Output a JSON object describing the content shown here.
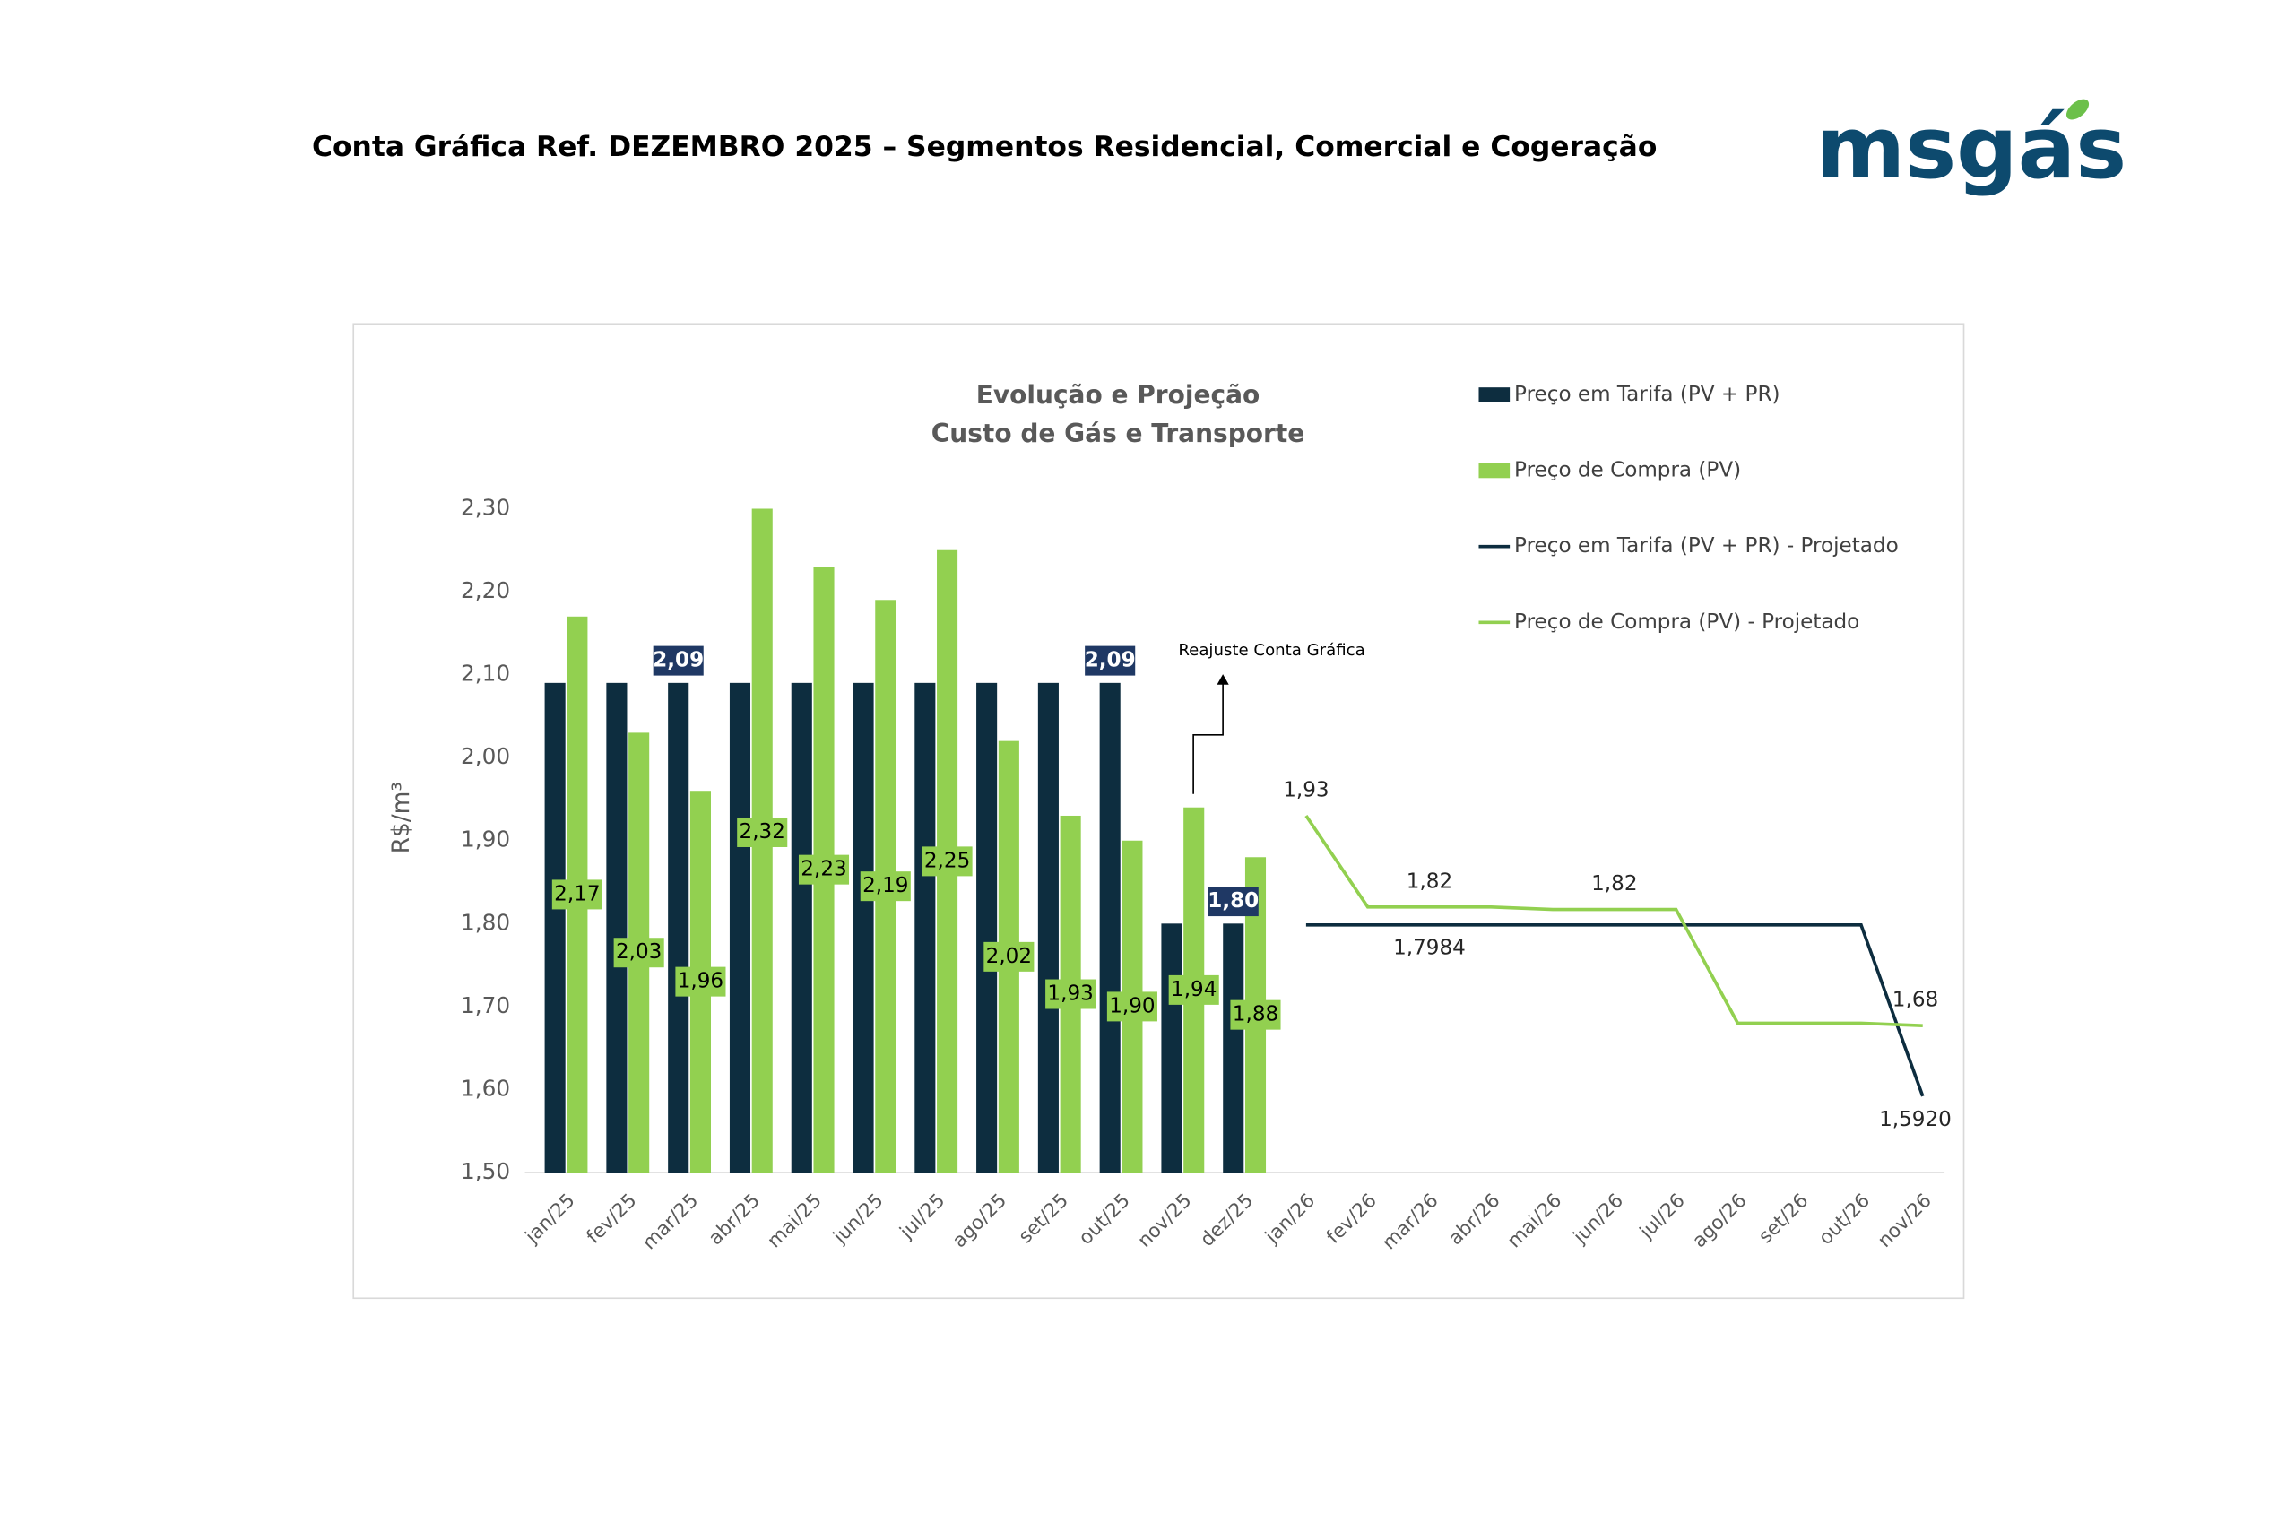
{
  "header": {
    "title": "Conta Gráfica Ref. DEZEMBRO 2025 – Segmentos Residencial, Comercial e Cogeração",
    "logo": "msgás"
  },
  "chart_data": {
    "type": "bar",
    "title": "Evolução e Projeção",
    "subtitle": "Custo de Gás e Transporte",
    "y_label": "R$/m³",
    "annotation": "Reajuste Conta Gráfica",
    "categories": [
      "jan/25",
      "fev/25",
      "mar/25",
      "abr/25",
      "mai/25",
      "jun/25",
      "jul/25",
      "ago/25",
      "set/25",
      "out/25",
      "nov/25",
      "dez/25",
      "jan/26",
      "fev/26",
      "mar/26",
      "abr/26",
      "mai/26",
      "jun/26",
      "jul/26",
      "ago/26",
      "set/26",
      "out/26",
      "nov/26"
    ],
    "ylim": [
      1.5,
      2.3
    ],
    "yticks": [
      {
        "value": 1.5,
        "label": "1,50"
      },
      {
        "value": 1.6,
        "label": "1,60"
      },
      {
        "value": 1.7,
        "label": "1,70"
      },
      {
        "value": 1.8,
        "label": "1,80"
      },
      {
        "value": 1.9,
        "label": "1,90"
      },
      {
        "value": 2.0,
        "label": "2,00"
      },
      {
        "value": 2.1,
        "label": "2,10"
      },
      {
        "value": 2.2,
        "label": "2,20"
      },
      {
        "value": 2.3,
        "label": "2,30"
      }
    ],
    "legend": "right",
    "series": [
      {
        "name": "Preço em Tarifa (PV + PR)",
        "type": "bar",
        "color": "#0d2d3f",
        "values": [
          2.09,
          2.09,
          2.09,
          2.09,
          2.09,
          2.09,
          2.09,
          2.09,
          2.09,
          2.09,
          1.8,
          1.8,
          null,
          null,
          null,
          null,
          null,
          null,
          null,
          null,
          null,
          null,
          null
        ],
        "value_labels": [
          null,
          null,
          "2,09",
          null,
          null,
          null,
          null,
          null,
          null,
          "2,09",
          null,
          "1,80",
          null,
          null,
          null,
          null,
          null,
          null,
          null,
          null,
          null,
          null,
          null
        ]
      },
      {
        "name": "Preço de Compra (PV)",
        "type": "bar",
        "color": "#92d050",
        "values": [
          2.17,
          2.03,
          1.96,
          2.32,
          2.23,
          2.19,
          2.25,
          2.02,
          1.93,
          1.9,
          1.94,
          1.88,
          null,
          null,
          null,
          null,
          null,
          null,
          null,
          null,
          null,
          null,
          null
        ],
        "value_labels": [
          "2,17",
          "2,03",
          "1,96",
          "2,32",
          "2,23",
          "2,19",
          "2,25",
          "2,02",
          "1,93",
          "1,90",
          "1,94",
          "1,88",
          null,
          null,
          null,
          null,
          null,
          null,
          null,
          null,
          null,
          null,
          null
        ]
      },
      {
        "name": "Preço em Tarifa (PV + PR) - Projetado",
        "type": "line",
        "color": "#0d2d3f",
        "values": [
          null,
          null,
          null,
          null,
          null,
          null,
          null,
          null,
          null,
          null,
          null,
          null,
          1.7984,
          1.7984,
          1.7984,
          1.7984,
          1.7984,
          1.7984,
          1.7984,
          1.7984,
          1.7984,
          1.7984,
          1.592
        ],
        "value_labels": [
          null,
          null,
          null,
          null,
          null,
          null,
          null,
          null,
          null,
          null,
          null,
          null,
          null,
          null,
          "1,7984",
          null,
          null,
          null,
          null,
          null,
          null,
          null,
          "1,5920"
        ]
      },
      {
        "name": "Preço de Compra (PV) - Projetado",
        "type": "line",
        "color": "#92d050",
        "values": [
          null,
          null,
          null,
          null,
          null,
          null,
          null,
          null,
          null,
          null,
          null,
          null,
          1.93,
          1.82,
          1.82,
          1.82,
          1.817,
          1.817,
          1.817,
          1.68,
          1.68,
          1.68,
          1.677
        ],
        "value_labels": [
          null,
          null,
          null,
          null,
          null,
          null,
          null,
          null,
          null,
          null,
          null,
          null,
          "1,93",
          null,
          "1,82",
          null,
          null,
          "1,82",
          null,
          null,
          null,
          null,
          "1,68"
        ]
      }
    ]
  }
}
